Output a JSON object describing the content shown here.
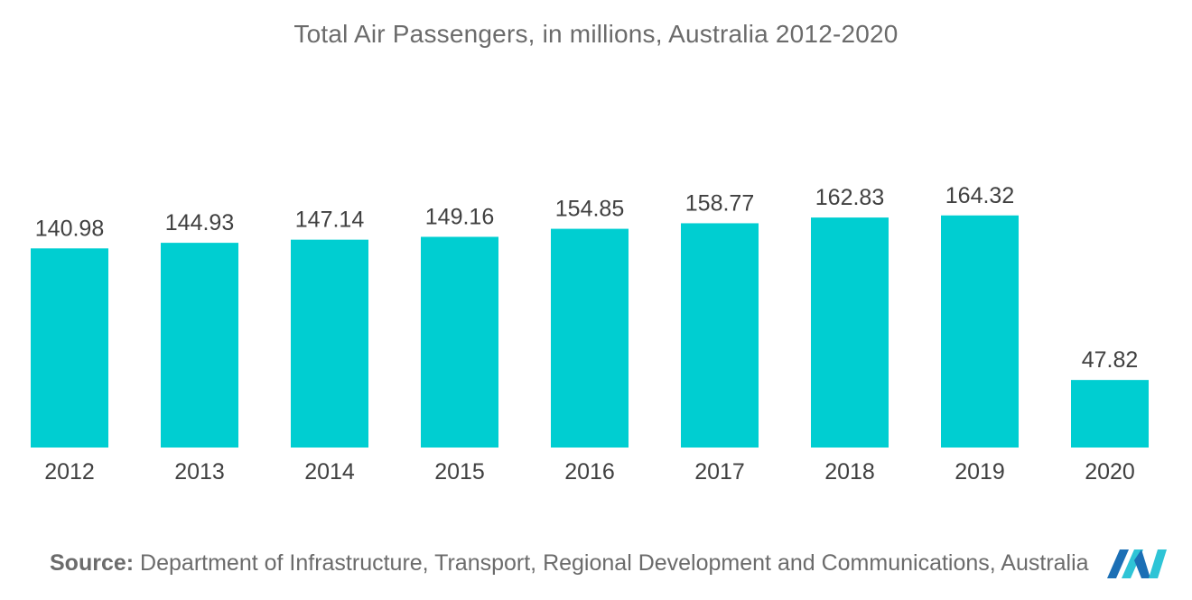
{
  "chart_data": {
    "type": "bar",
    "title": "Total Air Passengers, in millions, Australia 2012-2020",
    "categories": [
      "2012",
      "2013",
      "2014",
      "2015",
      "2016",
      "2017",
      "2018",
      "2019",
      "2020"
    ],
    "values": [
      140.98,
      144.93,
      147.14,
      149.16,
      154.85,
      158.77,
      162.83,
      164.32,
      47.82
    ],
    "value_labels": [
      "140.98",
      "144.93",
      "147.14",
      "149.16",
      "154.85",
      "158.77",
      "162.83",
      "164.32",
      "47.82"
    ],
    "xlabel": "",
    "ylabel": "",
    "grid": false,
    "legend": "none",
    "bar_color": "#00ced1"
  },
  "source": {
    "label": "Source:",
    "text": "Department of Infrastructure, Transport, Regional Development and Communications, Australia"
  },
  "logo": {
    "icon": "company-logo-icon",
    "colors": [
      "#1b6fb5",
      "#2ec4d6"
    ]
  }
}
